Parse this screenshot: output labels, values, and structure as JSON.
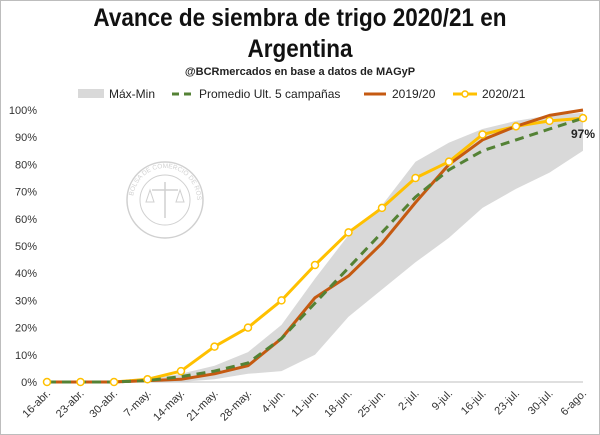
{
  "chart_data": {
    "type": "line",
    "title_line1": "Avance de siembra de trigo 2020/21 en",
    "title_line2": "Argentina",
    "subtitle": "@BCRmercados en base a datos de MAGyP",
    "watermark_text": "BOLSA DE COMERCIO DE ROSARIO",
    "categories": [
      "16-abr.",
      "23-abr.",
      "30-abr.",
      "7-may.",
      "14-may.",
      "21-may.",
      "28-may.",
      "4-jun.",
      "11-jun.",
      "18-jun.",
      "25-jun.",
      "2-jul.",
      "9-jul.",
      "16-jul.",
      "23-jul.",
      "30-jul.",
      "6-ago."
    ],
    "y_ticks": [
      "0%",
      "10%",
      "20%",
      "30%",
      "40%",
      "50%",
      "60%",
      "70%",
      "80%",
      "90%",
      "100%"
    ],
    "ylim": [
      0,
      100
    ],
    "band": {
      "name": "Máx-Min",
      "max": [
        0,
        0,
        0,
        1,
        3,
        6,
        11,
        21,
        38,
        54,
        65,
        81,
        88,
        93,
        96,
        98,
        99
      ],
      "min": [
        0,
        0,
        0,
        0,
        0,
        1,
        3,
        4,
        10,
        24,
        34,
        44,
        53,
        64,
        71,
        77,
        85
      ]
    },
    "series": [
      {
        "name": "Promedio Ult. 5 campañas",
        "values": [
          0,
          0,
          0,
          0.5,
          2,
          4,
          7,
          16,
          29,
          42,
          55,
          68,
          78,
          85,
          89,
          93,
          97
        ]
      },
      {
        "name": "2019/20",
        "values": [
          0,
          0,
          0,
          0.5,
          1,
          3,
          6,
          16,
          31,
          39,
          51,
          66,
          80,
          89,
          94,
          98,
          100
        ]
      },
      {
        "name": "2020/21",
        "values": [
          0,
          0,
          0,
          1,
          4,
          13,
          20,
          30,
          43,
          55,
          64,
          75,
          81,
          91,
          94,
          96,
          97
        ]
      }
    ],
    "annotation": "97%",
    "colors": {
      "band": "#d9d9d9",
      "promedio": "#548235",
      "s2019": "#c55a11",
      "s2020": "#ffc000",
      "marker_fill": "#ffffff"
    }
  }
}
